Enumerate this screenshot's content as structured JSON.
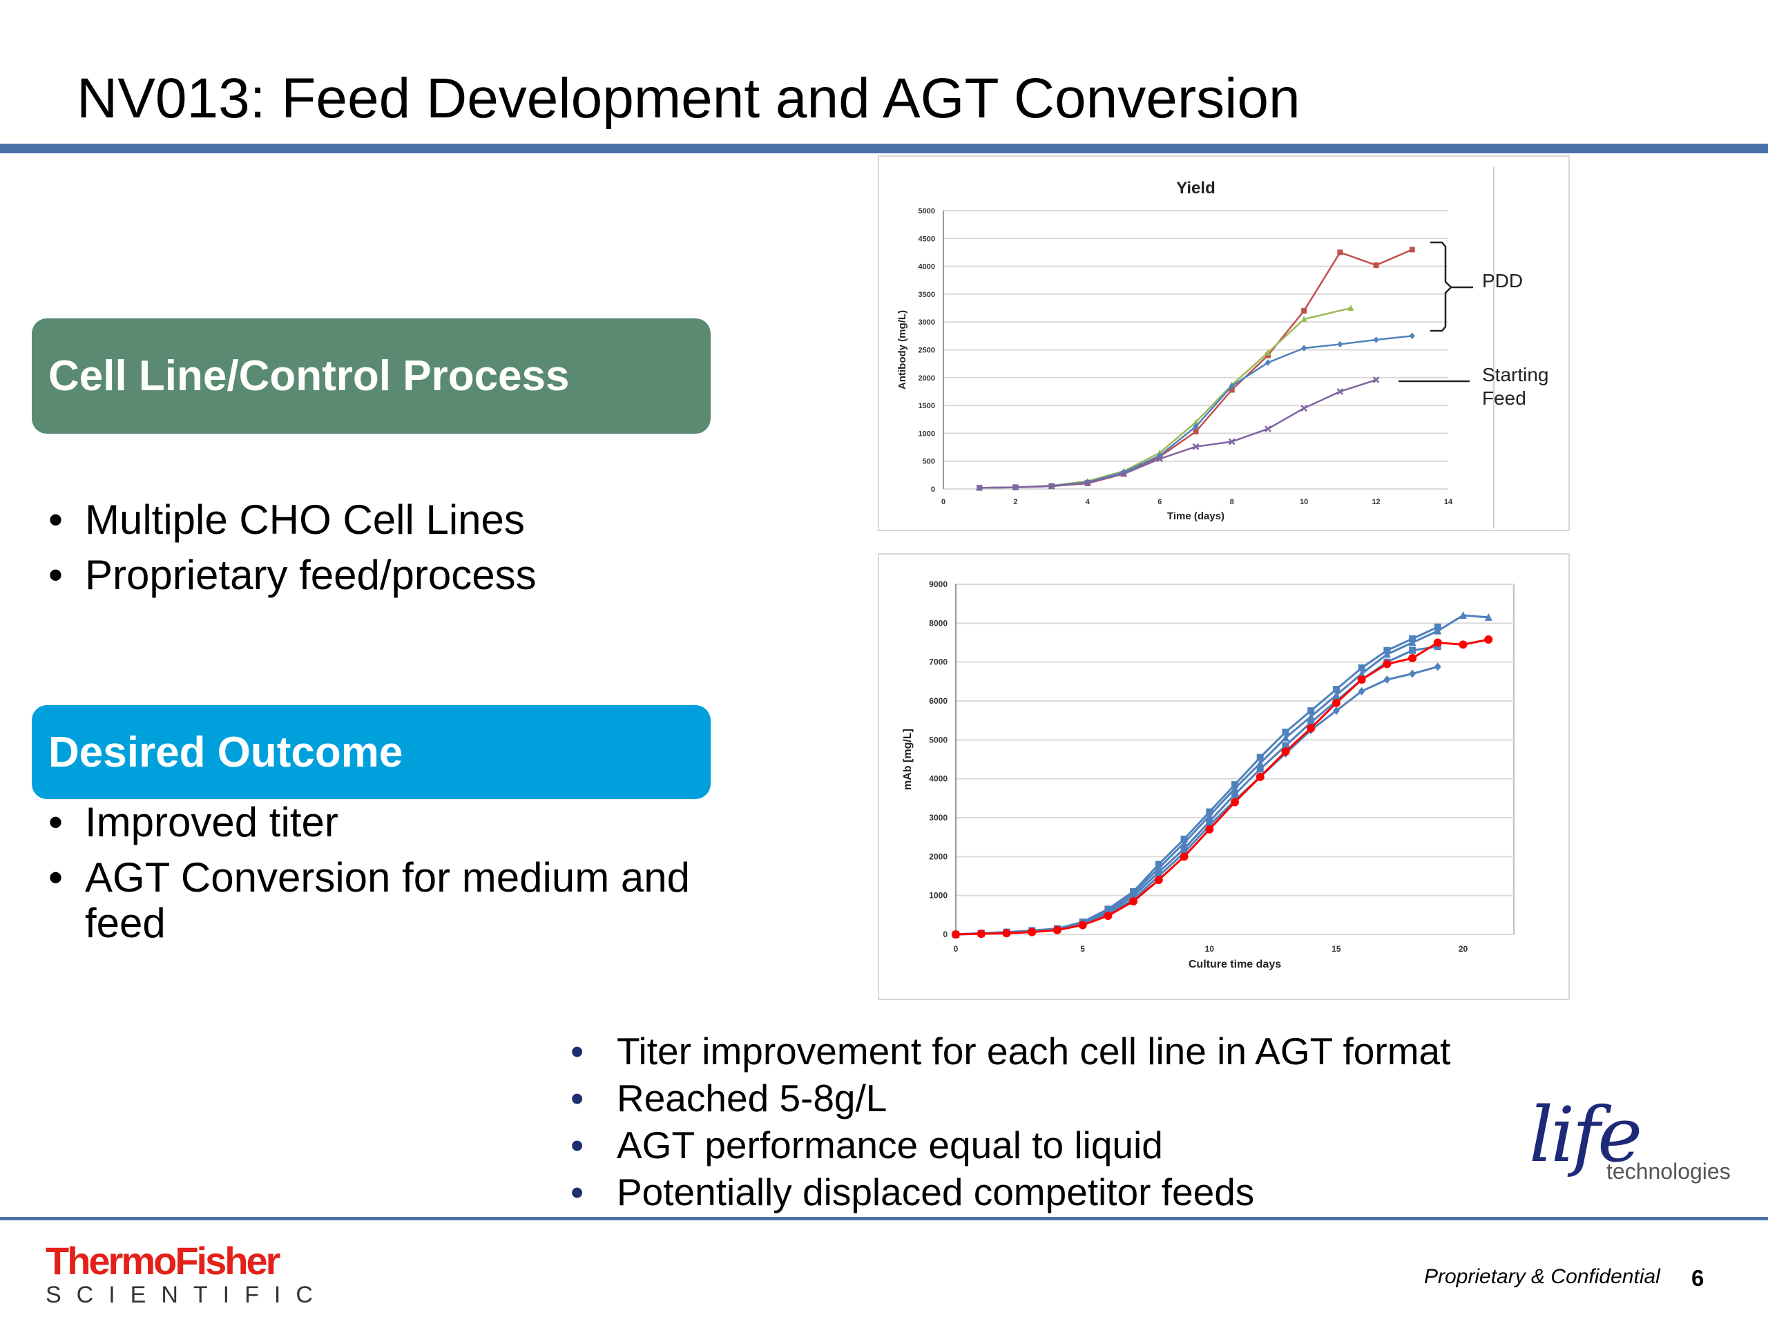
{
  "slide": {
    "title": "NV013: Feed Development and AGT Conversion",
    "box1_title": "Cell Line/Control Process",
    "list1": [
      "Multiple CHO Cell Lines",
      "Proprietary feed/process"
    ],
    "box2_title": "Desired Outcome",
    "list2": [
      "Improved titer",
      "AGT Conversion for medium and feed"
    ],
    "list3": [
      "Titer improvement for each cell line in AGT format",
      "Reached 5-8g/L",
      "AGT performance equal to liquid",
      "Potentially displaced competitor feeds"
    ],
    "bullet": "•",
    "footer": {
      "brand_main": "ThermoFisher",
      "brand_sub": "SCIENTIFIC",
      "life_main": "life",
      "life_sub": "technologies",
      "confidential": "Proprietary & Confidential",
      "page": "6"
    },
    "annotations": {
      "pdd": "PDD",
      "starting": "Starting",
      "feed": "Feed"
    }
  },
  "chart_data": [
    {
      "type": "line",
      "title": "Yield",
      "xlabel": "Time (days)",
      "ylabel": "Antibody (mg/L)",
      "xlim": [
        0,
        14
      ],
      "ylim": [
        0,
        5000
      ],
      "xticks": [
        0,
        2,
        4,
        6,
        8,
        10,
        12,
        14
      ],
      "yticks": [
        0,
        500,
        1000,
        1500,
        2000,
        2500,
        3000,
        3500,
        4000,
        4500,
        5000
      ],
      "grid": true,
      "series": [
        {
          "color": "#c0504d",
          "marker": "square",
          "x": [
            1,
            2,
            3,
            4,
            5,
            6,
            7,
            8,
            9,
            10,
            11,
            12,
            13
          ],
          "y": [
            20,
            30,
            50,
            100,
            270,
            580,
            1030,
            1780,
            2400,
            3200,
            4250,
            4020,
            4300
          ]
        },
        {
          "color": "#9bbb59",
          "marker": "triangle",
          "x": [
            1,
            2,
            3,
            4,
            5,
            6,
            7,
            8,
            9,
            10,
            11.3
          ],
          "y": [
            20,
            30,
            60,
            140,
            320,
            650,
            1200,
            1870,
            2450,
            3050,
            3250
          ]
        },
        {
          "color": "#4f81bd",
          "marker": "diamond",
          "x": [
            1,
            2,
            3,
            4,
            5,
            6,
            7,
            8,
            9,
            10,
            11,
            12,
            13
          ],
          "y": [
            20,
            30,
            55,
            120,
            300,
            600,
            1120,
            1850,
            2270,
            2530,
            2600,
            2680,
            2750
          ]
        },
        {
          "color": "#8064a2",
          "marker": "x",
          "x": [
            1,
            2,
            3,
            4,
            5,
            6,
            7,
            8,
            9,
            10,
            11,
            12
          ],
          "y": [
            20,
            30,
            50,
            110,
            270,
            540,
            760,
            850,
            1080,
            1450,
            1750,
            1960
          ]
        }
      ]
    },
    {
      "type": "line",
      "title": "",
      "xlabel": "Culture time days",
      "ylabel": "mAb [mg/L]",
      "xlim": [
        0,
        22
      ],
      "ylim": [
        0,
        9000
      ],
      "xticks": [
        0,
        5,
        10,
        15,
        20
      ],
      "yticks": [
        0,
        1000,
        2000,
        3000,
        4000,
        5000,
        6000,
        7000,
        8000,
        9000
      ],
      "grid": true,
      "series": [
        {
          "color": "#4f81bd",
          "marker": "square",
          "x": [
            0,
            1,
            2,
            3,
            4,
            5,
            6,
            7,
            8,
            9,
            10,
            11,
            12,
            13,
            14,
            15,
            16,
            17,
            18,
            19
          ],
          "y": [
            0,
            30,
            60,
            100,
            150,
            320,
            650,
            1100,
            1800,
            2450,
            3150,
            3850,
            4550,
            5200,
            5750,
            6300,
            6850,
            7300,
            7600,
            7900
          ]
        },
        {
          "color": "#4f81bd",
          "marker": "triangle",
          "x": [
            0,
            1,
            2,
            3,
            4,
            5,
            6,
            7,
            8,
            9,
            10,
            11,
            12,
            13,
            14,
            15,
            16,
            17,
            18,
            19,
            20,
            21
          ],
          "y": [
            0,
            30,
            55,
            95,
            140,
            300,
            620,
            1050,
            1700,
            2350,
            3050,
            3750,
            4400,
            5050,
            5600,
            6150,
            6700,
            7200,
            7500,
            7800,
            8200,
            8150
          ]
        },
        {
          "color": "#4f81bd",
          "marker": "square",
          "x": [
            0,
            1,
            2,
            3,
            4,
            5,
            6,
            7,
            8,
            9,
            10,
            11,
            12,
            13,
            14,
            15,
            16,
            17,
            18,
            19
          ],
          "y": [
            0,
            25,
            50,
            85,
            130,
            280,
            570,
            980,
            1600,
            2200,
            2900,
            3600,
            4250,
            4850,
            5450,
            6000,
            6550,
            7000,
            7300,
            7400
          ]
        },
        {
          "color": "#4f81bd",
          "marker": "diamond",
          "x": [
            0,
            1,
            2,
            3,
            4,
            5,
            6,
            7,
            8,
            9,
            10,
            11,
            12,
            13,
            14,
            15,
            16,
            17,
            18,
            19
          ],
          "y": [
            0,
            20,
            45,
            80,
            120,
            260,
            530,
            900,
            1500,
            2100,
            2800,
            3450,
            4050,
            4650,
            5250,
            5750,
            6250,
            6550,
            6700,
            6880
          ]
        },
        {
          "color": "#ff0000",
          "marker": "circle",
          "x": [
            0,
            1,
            2,
            3,
            4,
            5,
            6,
            7,
            8,
            9,
            10,
            11,
            12,
            13,
            14,
            15,
            16,
            17,
            18,
            19,
            20,
            21
          ],
          "y": [
            0,
            15,
            30,
            60,
            110,
            240,
            480,
            850,
            1400,
            2000,
            2700,
            3400,
            4050,
            4700,
            5300,
            5950,
            6550,
            6950,
            7100,
            7500,
            7450,
            7580
          ]
        }
      ]
    }
  ]
}
